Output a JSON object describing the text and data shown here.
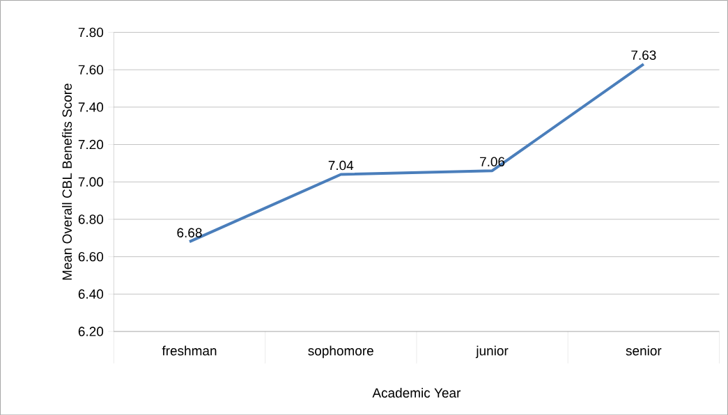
{
  "chart_data": {
    "type": "line",
    "xlabel": "Academic Year",
    "ylabel": "Mean Overall CBL Benefits Score",
    "categories": [
      "freshman",
      "sophomore",
      "junior",
      "senior"
    ],
    "values": [
      6.68,
      7.04,
      7.06,
      7.63
    ],
    "color": "#4a7ebb",
    "data_labels": true,
    "marker": "none",
    "line_style": "solid",
    "ylim": [
      6.2,
      7.8
    ],
    "yticks": [
      {
        "value": 6.2,
        "label": "6.20"
      },
      {
        "value": 6.4,
        "label": "6.40"
      },
      {
        "value": 6.6,
        "label": "6.60"
      },
      {
        "value": 6.8,
        "label": "6.80"
      },
      {
        "value": 7.0,
        "label": "7.00"
      },
      {
        "value": 7.2,
        "label": "7.20"
      },
      {
        "value": 7.4,
        "label": "7.40"
      },
      {
        "value": 7.6,
        "label": "7.60"
      },
      {
        "value": 7.8,
        "label": "7.80"
      }
    ],
    "grid": "y"
  }
}
